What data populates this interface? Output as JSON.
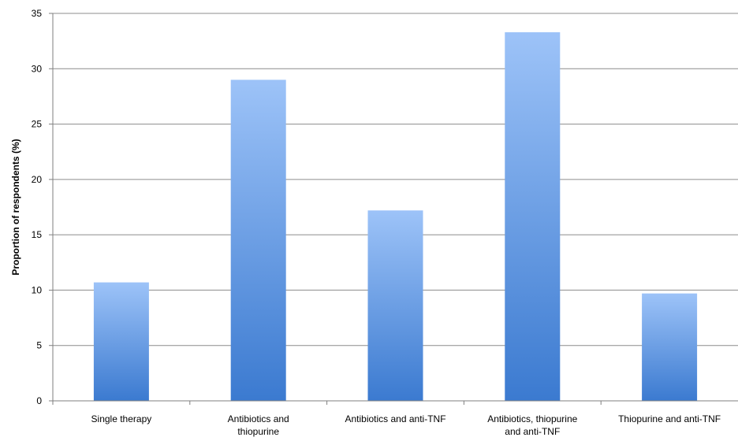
{
  "chart_data": {
    "type": "bar",
    "title": "",
    "xlabel": "",
    "ylabel": "Proportion of respondents (%)",
    "ylim": [
      0,
      35
    ],
    "yticks": [
      0,
      5,
      10,
      15,
      20,
      25,
      30,
      35
    ],
    "grid": true,
    "legend": "none",
    "categories": [
      [
        "Single therapy"
      ],
      [
        "Antibiotics and",
        "thiopurine"
      ],
      [
        "Antibiotics and anti-TNF"
      ],
      [
        "Antibiotics, thiopurine",
        "and anti-TNF"
      ],
      [
        "Thiopurine and anti-TNF"
      ]
    ],
    "values": [
      10.7,
      29.0,
      17.2,
      33.3,
      9.7
    ],
    "colors": {
      "bar_top": "#9dc3f8",
      "bar_bottom": "#3b7ad0",
      "gridline": "#8c8c8c",
      "axis": "#7f7f7f"
    }
  }
}
